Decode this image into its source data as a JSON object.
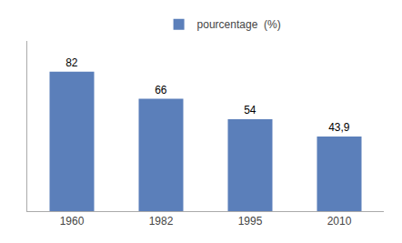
{
  "chart_data": {
    "type": "bar",
    "categories": [
      "1960",
      "1982",
      "1995",
      "2010"
    ],
    "series": [
      {
        "name": "pourcentage  (%)",
        "color": "#5b7fba",
        "values": [
          82,
          66,
          54,
          43.9
        ],
        "value_labels": [
          "82",
          "66",
          "54",
          "43,9"
        ]
      }
    ],
    "ylim": [
      0,
      100
    ],
    "data_labels": true,
    "tick_labels": "x",
    "grid": false,
    "legend": "top"
  }
}
